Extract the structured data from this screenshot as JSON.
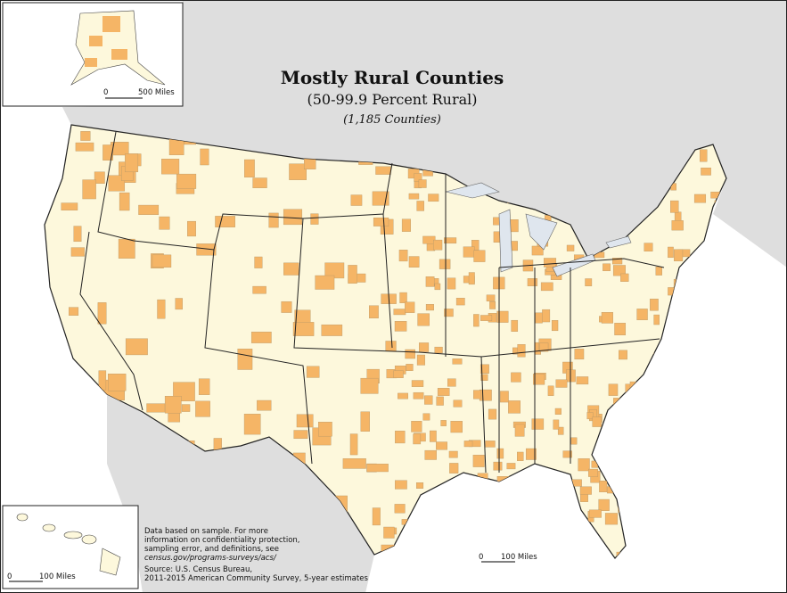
{
  "map": {
    "title": "Mostly Rural Counties",
    "subtitle": "(50-99.9 Percent Rural)",
    "count": "(1,185 Counties)",
    "notes": [
      "Data based on sample. For more",
      "information on confidentiality protection,",
      "sampling error, and definitions, see",
      "census.gov/programs-surveys/acs/"
    ],
    "source": [
      "Source: U.S. Census Bureau,",
      "2011-2015 American Community Survey, 5-year estimates"
    ],
    "scales": {
      "alaska": {
        "zero": "0",
        "label": "500 Miles"
      },
      "hawaii": {
        "zero": "0",
        "label": "100 Miles"
      },
      "main": {
        "zero": "0",
        "label": "100 Miles"
      }
    }
  }
}
